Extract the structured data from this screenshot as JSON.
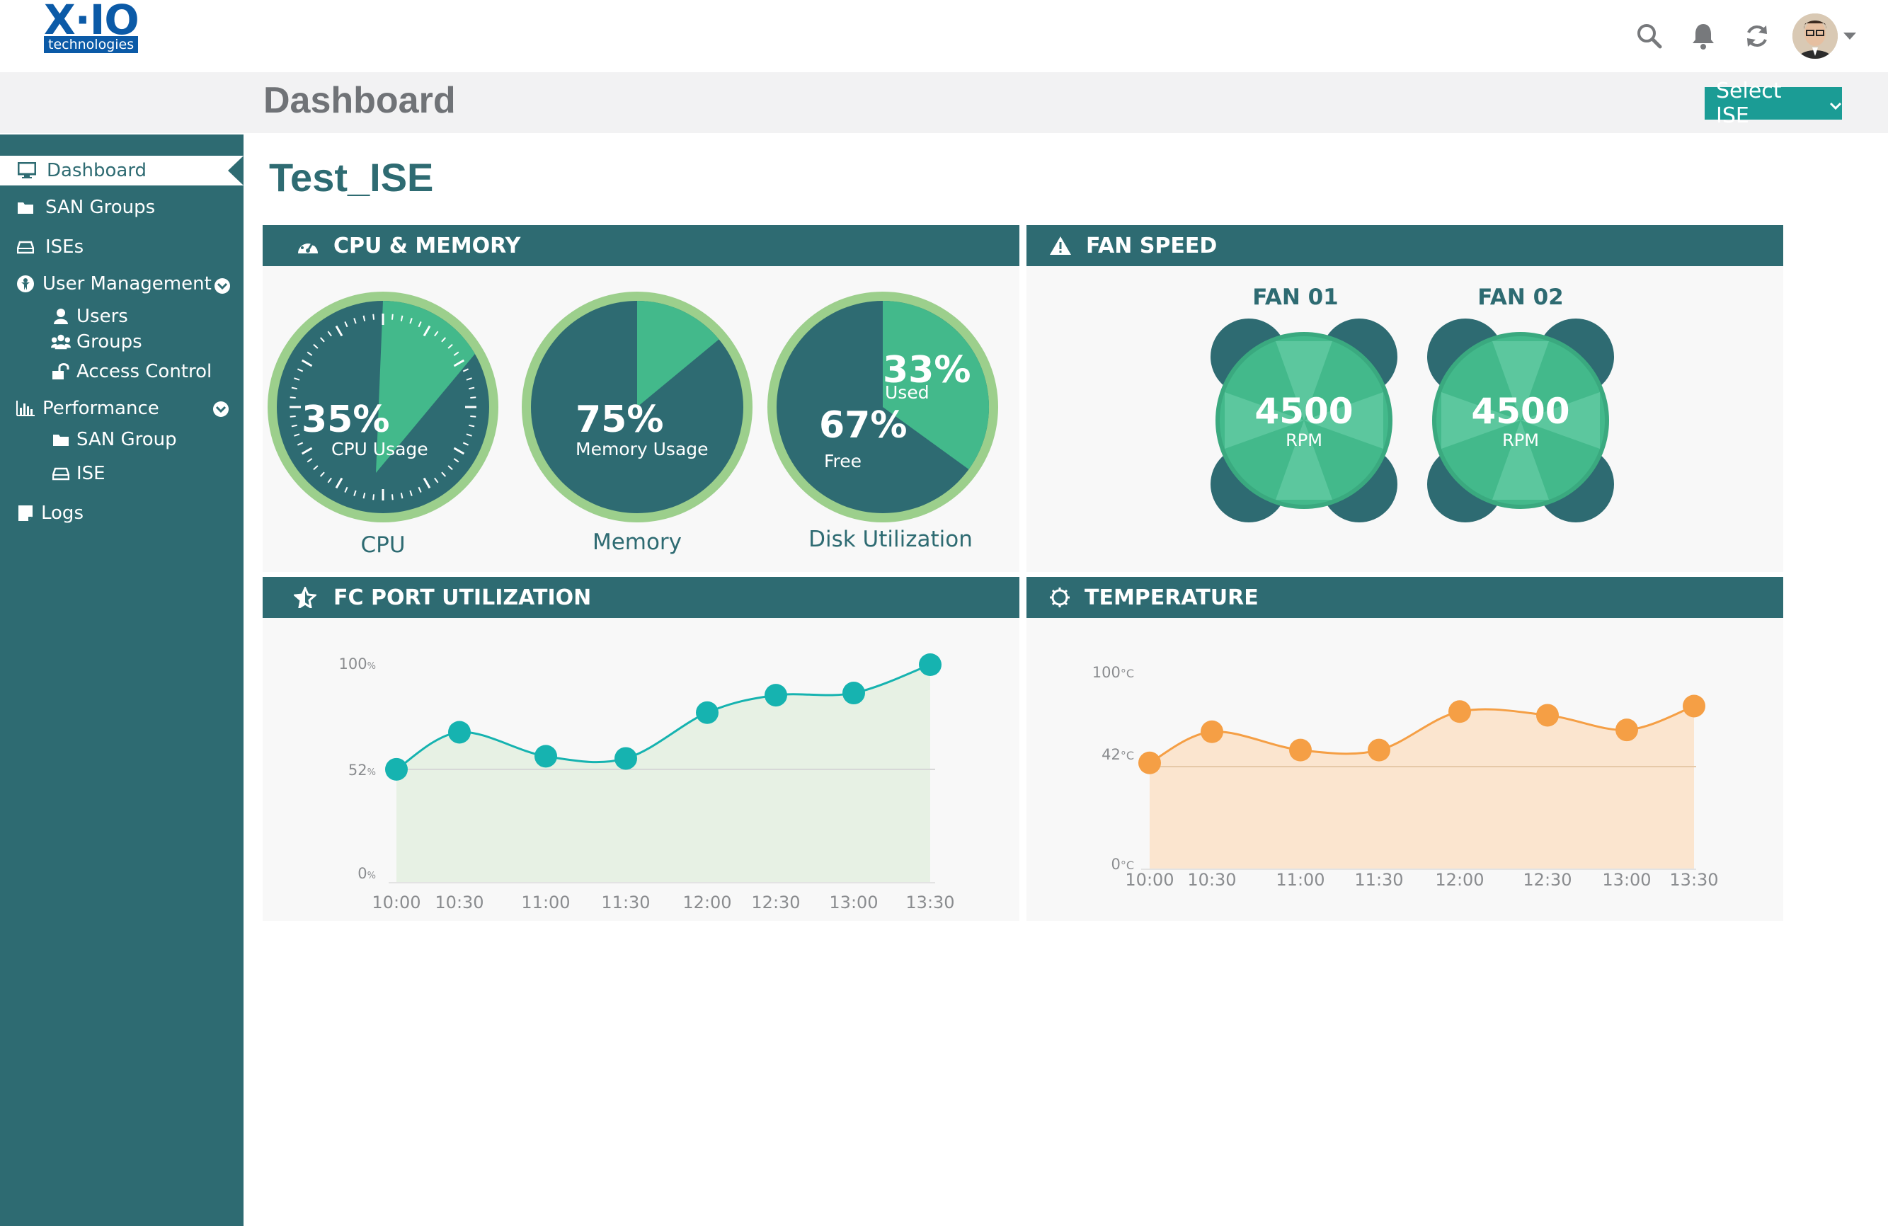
{
  "brand": {
    "logo_main": "X·IO",
    "logo_sub": "technologies"
  },
  "header": {
    "title": "Dashboard",
    "select_label": "Select ISE",
    "icons": [
      "search-icon",
      "bell-icon",
      "refresh-icon",
      "avatar",
      "chevron-down-icon"
    ]
  },
  "sidebar": {
    "items": [
      {
        "label": "Dashboard",
        "icon": "monitor-icon",
        "active": true
      },
      {
        "label": "SAN Groups",
        "icon": "folder-icon"
      },
      {
        "label": "ISEs",
        "icon": "drive-icon"
      },
      {
        "label": "User Management",
        "icon": "user-circle-icon"
      },
      {
        "label": "Users",
        "icon": "user-icon"
      },
      {
        "label": "Groups",
        "icon": "users-icon"
      },
      {
        "label": "Access Control",
        "icon": "unlock-icon"
      },
      {
        "label": "Performance",
        "icon": "bar-chart-icon"
      },
      {
        "label": "SAN Group",
        "icon": "folder-icon"
      },
      {
        "label": "ISE",
        "icon": "drive-icon"
      },
      {
        "label": "Logs",
        "icon": "document-icon"
      }
    ]
  },
  "main": {
    "subtitle": "Test_ISE",
    "panels": {
      "cpu_memory": "CPU & MEMORY",
      "fan_speed": "FAN SPEED",
      "fc_port": "FC PORT UTILIZATION",
      "temperature": "TEMPERATURE"
    },
    "gauges": {
      "cpu": {
        "percent": "35%",
        "sub": "CPU Usage",
        "label": "CPU",
        "value": 35
      },
      "memory": {
        "percent": "75%",
        "sub": "Memory Usage",
        "label": "Memory",
        "value": 75
      },
      "disk": {
        "used_percent": "33%",
        "used_label": "Used",
        "free_percent": "67%",
        "free_label": "Free",
        "label": "Disk Utilization",
        "value": 33
      }
    },
    "fans": [
      {
        "name": "FAN 01",
        "value": "4500",
        "unit": "RPM"
      },
      {
        "name": "FAN 02",
        "value": "4500",
        "unit": "RPM"
      }
    ]
  },
  "colors": {
    "teal": "#2e6b72",
    "green": "#43b98b",
    "light_green": "#9ccf8c",
    "cyan": "#16b3b0",
    "orange": "#f59f45"
  },
  "chart_data": [
    {
      "type": "area",
      "x": [
        "10:00",
        "10:30",
        "11:00",
        "11:30",
        "12:00",
        "12:30",
        "13:00",
        "13:30"
      ],
      "series": [
        {
          "values": [
            52,
            69,
            58,
            57,
            78,
            86,
            87,
            100
          ]
        }
      ],
      "ytick_labels": [
        "0",
        "52",
        "100"
      ],
      "yunit": "%",
      "ylim": [
        0,
        100
      ],
      "reference_line": 52,
      "grid": false
    },
    {
      "type": "area",
      "x": [
        "10:00",
        "10:30",
        "11:00",
        "11:30",
        "12:00",
        "12:30",
        "13:00",
        "13:30"
      ],
      "series": [
        {
          "values": [
            58,
            75,
            65,
            65,
            86,
            84,
            76,
            89
          ]
        }
      ],
      "ytick_labels": [
        "0",
        "42",
        "100"
      ],
      "yunit": "°C",
      "ylim": [
        0,
        100
      ],
      "reference_line": 56,
      "grid": false
    }
  ]
}
